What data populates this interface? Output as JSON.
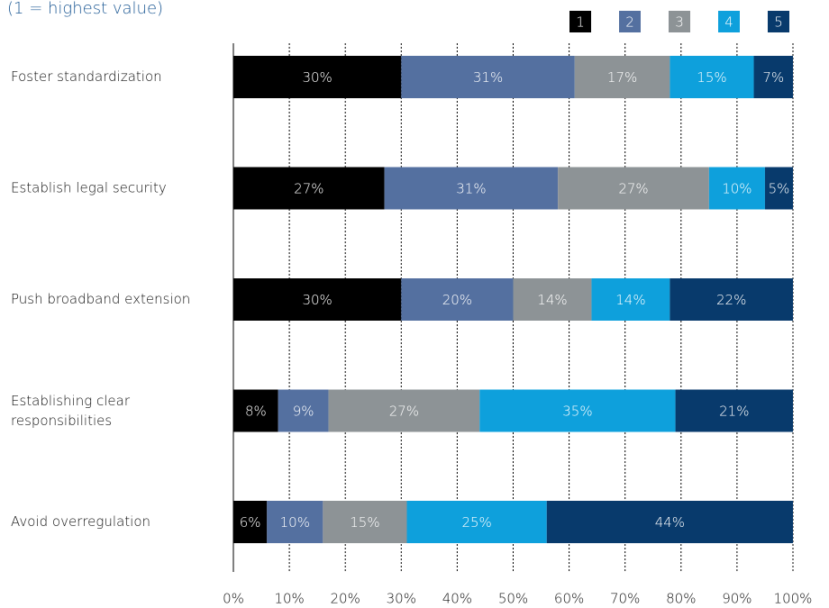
{
  "chart_data": {
    "type": "stacked-bar-horizontal",
    "title": "(1 = highest value)",
    "categories": [
      "Foster standardization",
      "Establish legal security",
      "Push broadband extension",
      "Establishing clear responsibilities",
      "Avoid overregulation"
    ],
    "series": [
      {
        "name": "1",
        "color": "#000000",
        "values": [
          30,
          27,
          30,
          8,
          6
        ],
        "value_labels": [
          "30%",
          "27%",
          "30%",
          "8%",
          "6%"
        ]
      },
      {
        "name": "2",
        "color": "#5470a0",
        "values": [
          31,
          31,
          20,
          9,
          10
        ],
        "value_labels": [
          "31%",
          "31%",
          "20%",
          "9%",
          "10%"
        ]
      },
      {
        "name": "3",
        "color": "#8d9396",
        "values": [
          17,
          27,
          14,
          27,
          15
        ],
        "value_labels": [
          "17%",
          "27%",
          "14%",
          "27%",
          "15%"
        ]
      },
      {
        "name": "4",
        "color": "#0ea0dc",
        "values": [
          15,
          10,
          14,
          35,
          25
        ],
        "value_labels": [
          "15%",
          "10%",
          "14%",
          "35%",
          "25%"
        ]
      },
      {
        "name": "5",
        "color": "#083a6c",
        "values": [
          7,
          5,
          22,
          21,
          44
        ],
        "value_labels": [
          "7%",
          "5%",
          "22%",
          "21%",
          "44%"
        ]
      }
    ],
    "xlim": [
      0,
      100
    ],
    "xticks": [
      {
        "value": 0,
        "label": "0%"
      },
      {
        "value": 10,
        "label": "10%"
      },
      {
        "value": 20,
        "label": "20%"
      },
      {
        "value": 30,
        "label": "30%"
      },
      {
        "value": 40,
        "label": "40%"
      },
      {
        "value": 50,
        "label": "50%"
      },
      {
        "value": 60,
        "label": "60%"
      },
      {
        "value": 70,
        "label": "70%"
      },
      {
        "value": 80,
        "label": "80%"
      },
      {
        "value": 90,
        "label": "90%"
      },
      {
        "value": 100,
        "label": "100%"
      }
    ],
    "grid": true,
    "legend": "top-right"
  }
}
